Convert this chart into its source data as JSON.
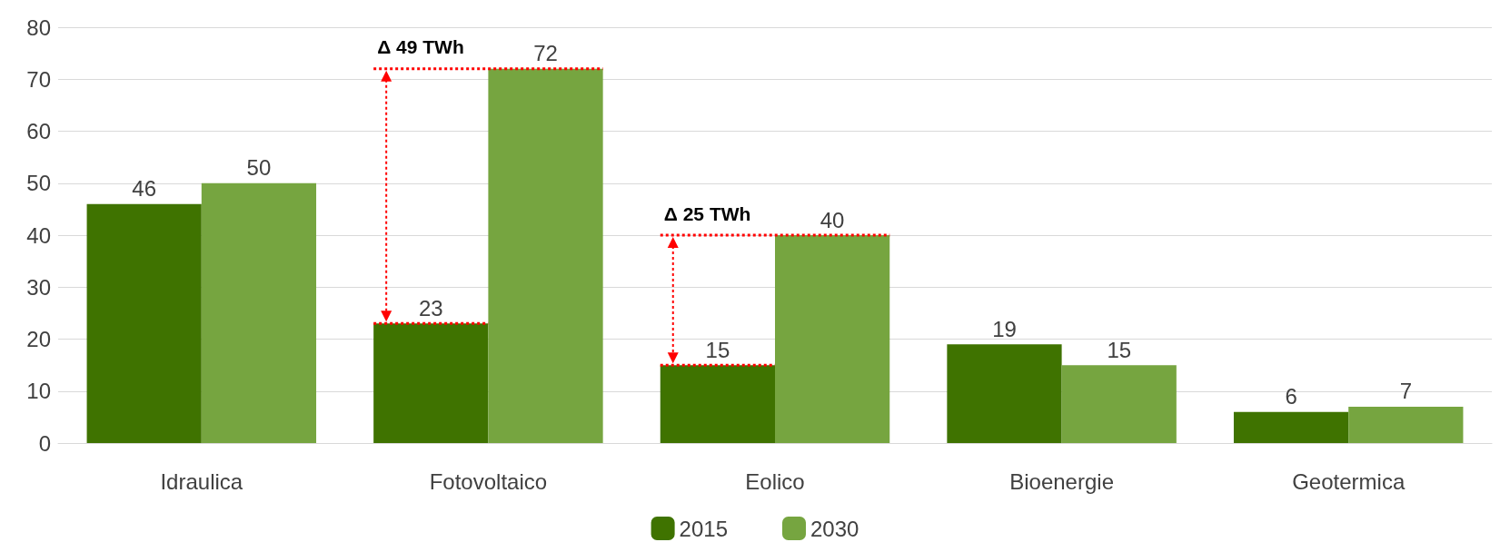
{
  "chart_data": {
    "type": "bar",
    "categories": [
      "Idraulica",
      "Fotovoltaico",
      "Eolico",
      "Bioenergie",
      "Geotermica"
    ],
    "series": [
      {
        "name": "2015",
        "color": "#3f7300",
        "values": [
          46,
          23,
          15,
          19,
          6
        ]
      },
      {
        "name": "2030",
        "color": "#76a540",
        "values": [
          50,
          72,
          40,
          15,
          7
        ]
      }
    ],
    "ylim": [
      0,
      80
    ],
    "yticks": [
      0,
      10,
      20,
      30,
      40,
      50,
      60,
      70,
      80
    ],
    "grid": "y",
    "legend": "bottom",
    "data_labels": true,
    "annotations": [
      {
        "text": "Δ 49 TWh",
        "x": "Fotovoltaico",
        "y": 72
      },
      {
        "text": "Δ 25 TWh",
        "x": "Eolico",
        "y": 40
      }
    ]
  }
}
